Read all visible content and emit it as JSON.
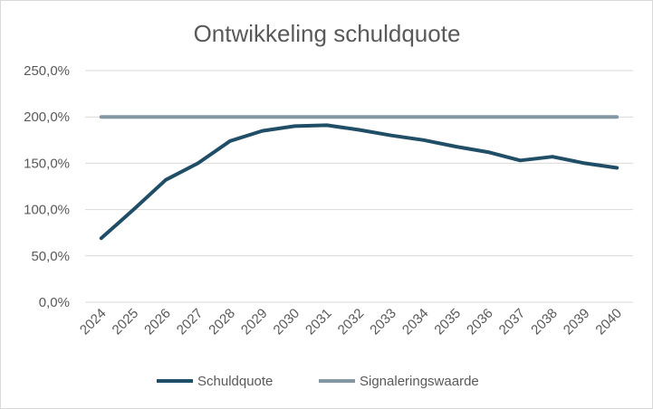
{
  "chart_data": {
    "type": "line",
    "title": "Ontwikkeling schuldquote",
    "xlabel": "",
    "ylabel": "",
    "categories": [
      "2024",
      "2025",
      "2026",
      "2027",
      "2028",
      "2029",
      "2030",
      "2031",
      "2032",
      "2033",
      "2034",
      "2035",
      "2036",
      "2037",
      "2038",
      "2039",
      "2040"
    ],
    "ylim": [
      0,
      250
    ],
    "yticks": [
      0,
      50,
      100,
      150,
      200,
      250
    ],
    "ytick_labels": [
      "0,0%",
      "50,0%",
      "100,0%",
      "150,0%",
      "200,0%",
      "250,0%"
    ],
    "grid": true,
    "legend_position": "bottom",
    "series": [
      {
        "name": "Schuldquote",
        "color": "#1f4e66",
        "values": [
          69,
          100,
          132,
          150,
          174,
          185,
          190,
          191,
          186,
          180,
          175,
          168,
          162,
          153,
          157,
          150,
          145
        ]
      },
      {
        "name": "Signaleringswaarde",
        "color": "#8497a5",
        "values": [
          200,
          200,
          200,
          200,
          200,
          200,
          200,
          200,
          200,
          200,
          200,
          200,
          200,
          200,
          200,
          200,
          200
        ]
      }
    ]
  }
}
